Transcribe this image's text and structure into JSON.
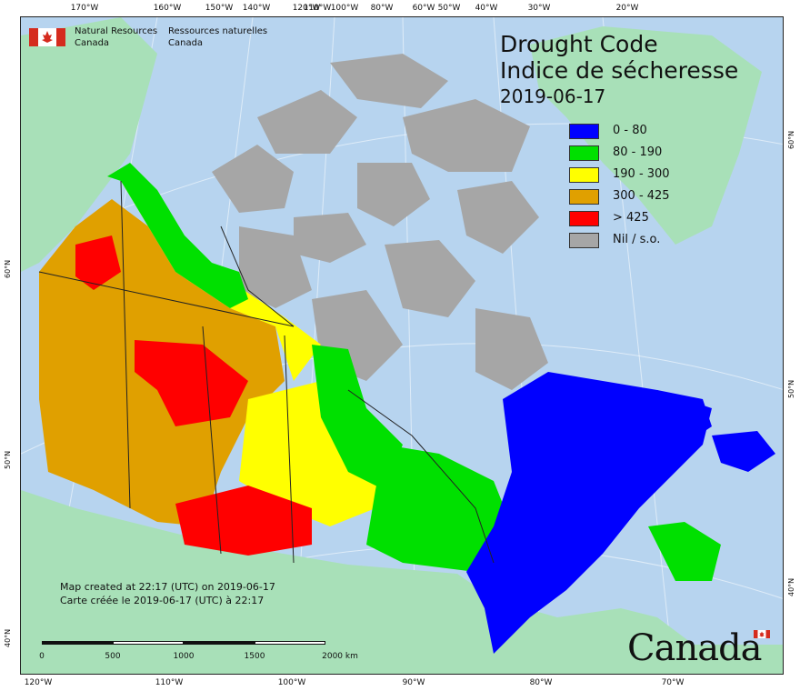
{
  "map": {
    "title_en": "Drought Code",
    "title_fr": "Indice de sécheresse",
    "date": "2019-06-17",
    "agency_en": [
      "Natural Resources",
      "Canada"
    ],
    "agency_fr": [
      "Ressources naturelles",
      "Canada"
    ],
    "credit_en": "Map created at 22:17 (UTC) on 2019-06-17",
    "credit_fr": "Carte créée le 2019-06-17 (UTC) à 22:17",
    "wordmark": "Canada",
    "legend": [
      {
        "label": "0 - 80",
        "color": "#0000ff"
      },
      {
        "label": "80 - 190",
        "color": "#00e000"
      },
      {
        "label": "190 - 300",
        "color": "#ffff00"
      },
      {
        "label": "300 - 425",
        "color": "#e0a000"
      },
      {
        "label": "> 425",
        "color": "#ff0000"
      },
      {
        "label": "Nil / s.o.",
        "color": "#a6a6a6"
      }
    ],
    "top_ticks": [
      "170°W",
      "160°W",
      "150°W",
      "140°W",
      "120°W",
      "110°W",
      "100°W",
      "80°W",
      "60°W",
      "50°W",
      "40°W",
      "30°W",
      "20°W"
    ],
    "bottom_ticks": [
      "120°W",
      "110°W",
      "100°W",
      "90°W",
      "80°W",
      "70°W"
    ],
    "left_ticks": [
      "60°N",
      "50°N",
      "40°N"
    ],
    "right_ticks": [
      "60°N",
      "50°N",
      "40°N"
    ],
    "scale": {
      "labels": [
        "0",
        "500",
        "1000",
        "1500",
        "2000 km"
      ]
    },
    "colors": {
      "ocean": "#b7d4ef",
      "neighbor_land": "#a8e0b8",
      "no_data": "#a6a6a6"
    }
  }
}
